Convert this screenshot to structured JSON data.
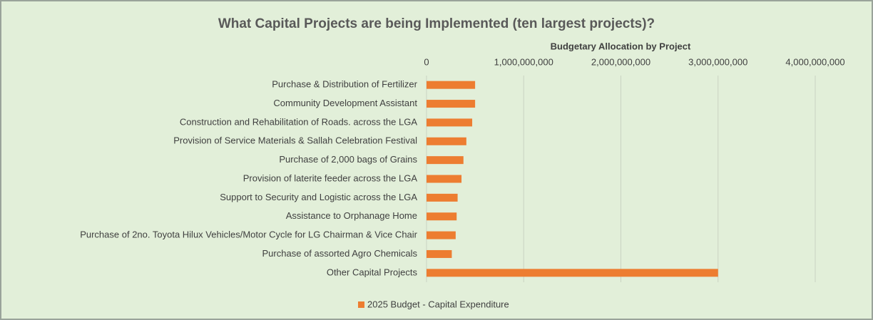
{
  "chart_data": {
    "type": "bar",
    "orientation": "horizontal",
    "title": "What Capital Projects are being Implemented (ten largest projects)?",
    "x_axis_title": "Budgetary Allocation by Project",
    "categories": [
      "Purchase & Distribution of Fertilizer",
      "Community Development Assistant",
      "Construction and Rehabilitation of Roads. across the LGA",
      "Provision of Service Materials & Sallah Celebration Festival",
      "Purchase of 2,000 bags of Grains",
      "Provision of laterite feeder across the LGA",
      "Support to Security and Logistic across the LGA",
      "Assistance to Orphanage Home",
      "Purchase of 2no. Toyota Hilux Vehicles/Motor Cycle for LG Chairman & Vice Chair",
      "Purchase of assorted Agro Chemicals",
      "Other Capital Projects"
    ],
    "series": [
      {
        "name": "2025 Budget - Capital Expenditure",
        "color": "#ed7d31",
        "values": [
          500000000,
          500000000,
          470000000,
          410000000,
          380000000,
          360000000,
          320000000,
          310000000,
          300000000,
          260000000,
          3000000000
        ]
      }
    ],
    "xlim": [
      0,
      4000000000
    ],
    "xticks": [
      0,
      {
        "value": 1000000000,
        "label": "1,000,000,000"
      },
      {
        "value": 2000000000,
        "label": "2,000,000,000"
      },
      {
        "value": 3000000000,
        "label": "3,000,000,000"
      },
      {
        "value": 4000000000,
        "label": "4,000,000,000"
      }
    ],
    "grid": true,
    "legend": "bottom"
  }
}
